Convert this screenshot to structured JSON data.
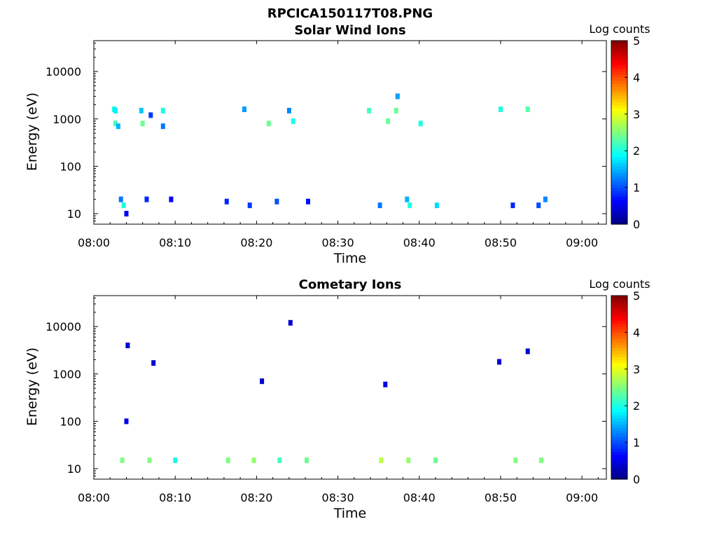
{
  "figure_title": "RPCICA150117T08.PNG",
  "colormap_stops": [
    "#00007f",
    "#0000ff",
    "#0080ff",
    "#00ffff",
    "#80ff80",
    "#ffff00",
    "#ff8000",
    "#ff0000",
    "#7f0000"
  ],
  "chart_data": [
    {
      "type": "heatmap",
      "title": "Solar Wind Ions",
      "xlabel": "Time",
      "ylabel": "Energy (eV)",
      "y_scale": "log",
      "x_range": [
        "08:00",
        "09:03"
      ],
      "y_range": [
        6,
        45000
      ],
      "x_ticks": [
        "08:00",
        "08:10",
        "08:20",
        "08:30",
        "08:40",
        "08:50",
        "09:00"
      ],
      "y_ticks": [
        "10",
        "100",
        "1000",
        "10000"
      ],
      "colorbar": {
        "label": "Log counts",
        "range": [
          0,
          5
        ],
        "ticks": [
          "0",
          "1",
          "2",
          "3",
          "4",
          "5"
        ]
      },
      "cells": [
        {
          "t": "08:02:30",
          "e": 1600,
          "v": 2.0
        },
        {
          "t": "08:02:40",
          "e": 1500,
          "v": 1.8
        },
        {
          "t": "08:02:40",
          "e": 800,
          "v": 2.2
        },
        {
          "t": "08:03:00",
          "e": 700,
          "v": 1.5
        },
        {
          "t": "08:03:20",
          "e": 20,
          "v": 1.2
        },
        {
          "t": "08:03:40",
          "e": 15,
          "v": 2.0
        },
        {
          "t": "08:04:00",
          "e": 10,
          "v": 0.6
        },
        {
          "t": "08:05:50",
          "e": 1500,
          "v": 1.6
        },
        {
          "t": "08:06:00",
          "e": 800,
          "v": 2.4
        },
        {
          "t": "08:06:30",
          "e": 20,
          "v": 0.8
        },
        {
          "t": "08:07:00",
          "e": 1200,
          "v": 0.9
        },
        {
          "t": "08:08:30",
          "e": 1500,
          "v": 2.0
        },
        {
          "t": "08:08:30",
          "e": 700,
          "v": 1.2
        },
        {
          "t": "08:09:30",
          "e": 20,
          "v": 0.6
        },
        {
          "t": "08:16:20",
          "e": 18,
          "v": 0.8
        },
        {
          "t": "08:18:30",
          "e": 1600,
          "v": 1.4
        },
        {
          "t": "08:19:10",
          "e": 15,
          "v": 0.9
        },
        {
          "t": "08:21:30",
          "e": 800,
          "v": 2.4
        },
        {
          "t": "08:22:30",
          "e": 18,
          "v": 1.0
        },
        {
          "t": "08:24:00",
          "e": 1500,
          "v": 1.3
        },
        {
          "t": "08:24:30",
          "e": 900,
          "v": 2.0
        },
        {
          "t": "08:26:20",
          "e": 18,
          "v": 0.7
        },
        {
          "t": "08:33:50",
          "e": 1500,
          "v": 2.2
        },
        {
          "t": "08:35:10",
          "e": 15,
          "v": 1.2
        },
        {
          "t": "08:36:10",
          "e": 900,
          "v": 2.4
        },
        {
          "t": "08:37:10",
          "e": 1500,
          "v": 2.4
        },
        {
          "t": "08:37:20",
          "e": 3000,
          "v": 1.4
        },
        {
          "t": "08:38:30",
          "e": 20,
          "v": 1.5
        },
        {
          "t": "08:38:50",
          "e": 15,
          "v": 2.0
        },
        {
          "t": "08:40:10",
          "e": 800,
          "v": 2.0
        },
        {
          "t": "08:42:10",
          "e": 15,
          "v": 1.7
        },
        {
          "t": "08:50:00",
          "e": 1600,
          "v": 2.0
        },
        {
          "t": "08:51:30",
          "e": 15,
          "v": 0.8
        },
        {
          "t": "08:53:20",
          "e": 1600,
          "v": 2.3
        },
        {
          "t": "08:54:40",
          "e": 15,
          "v": 1.0
        },
        {
          "t": "08:55:30",
          "e": 20,
          "v": 1.3
        }
      ]
    },
    {
      "type": "heatmap",
      "title": "Cometary Ions",
      "xlabel": "Time",
      "ylabel": "Energy (eV)",
      "y_scale": "log",
      "x_range": [
        "08:00",
        "09:03"
      ],
      "y_range": [
        6,
        45000
      ],
      "x_ticks": [
        "08:00",
        "08:10",
        "08:20",
        "08:30",
        "08:40",
        "08:50",
        "09:00"
      ],
      "y_ticks": [
        "10",
        "100",
        "1000",
        "10000"
      ],
      "colorbar": {
        "label": "Log counts",
        "range": [
          0,
          5
        ],
        "ticks": [
          "0",
          "1",
          "2",
          "3",
          "4",
          "5"
        ]
      },
      "cells": [
        {
          "t": "08:03:30",
          "e": 15,
          "v": 2.5
        },
        {
          "t": "08:04:00",
          "e": 100,
          "v": 0.5
        },
        {
          "t": "08:04:10",
          "e": 4000,
          "v": 0.4
        },
        {
          "t": "08:06:50",
          "e": 15,
          "v": 2.5
        },
        {
          "t": "08:07:20",
          "e": 1700,
          "v": 0.4
        },
        {
          "t": "08:10:00",
          "e": 15,
          "v": 2.0
        },
        {
          "t": "08:16:30",
          "e": 15,
          "v": 2.5
        },
        {
          "t": "08:19:40",
          "e": 15,
          "v": 2.6
        },
        {
          "t": "08:20:40",
          "e": 700,
          "v": 0.4
        },
        {
          "t": "08:22:50",
          "e": 15,
          "v": 2.2
        },
        {
          "t": "08:24:10",
          "e": 12000,
          "v": 0.4
        },
        {
          "t": "08:26:10",
          "e": 15,
          "v": 2.4
        },
        {
          "t": "08:35:20",
          "e": 15,
          "v": 2.8
        },
        {
          "t": "08:35:50",
          "e": 600,
          "v": 0.5
        },
        {
          "t": "08:38:40",
          "e": 15,
          "v": 2.6
        },
        {
          "t": "08:42:00",
          "e": 15,
          "v": 2.4
        },
        {
          "t": "08:49:50",
          "e": 1800,
          "v": 0.4
        },
        {
          "t": "08:51:50",
          "e": 15,
          "v": 2.5
        },
        {
          "t": "08:53:20",
          "e": 3000,
          "v": 0.4
        },
        {
          "t": "08:55:00",
          "e": 15,
          "v": 2.5
        }
      ]
    }
  ]
}
